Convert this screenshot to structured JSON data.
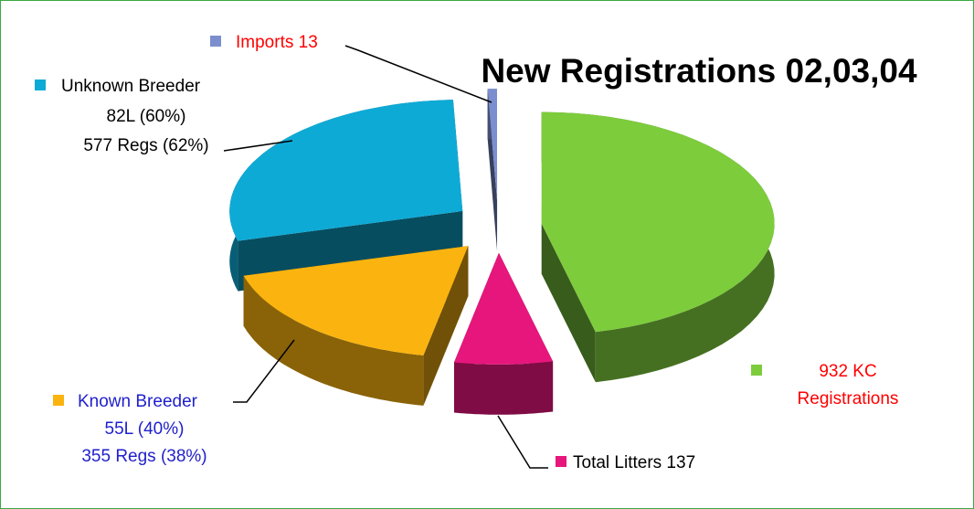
{
  "chart_data": {
    "type": "pie3d",
    "title": "New Registrations 02,03,04",
    "categories": [
      "KC Registrations",
      "Total Litters",
      "Known Breeder",
      "Unknown Breeder",
      "Imports"
    ],
    "values": [
      932,
      137,
      355,
      577,
      13
    ],
    "colors": [
      "#7dcc3c",
      "#e6167c",
      "#fbb40f",
      "#0eaad6",
      "#7b8fcf"
    ],
    "value_labels": [
      [
        "932 KC",
        "Registrations"
      ],
      [
        "Total Litters 137"
      ],
      [
        "Known Breeder",
        "55L (40%)",
        "355 Regs (38%)"
      ],
      [
        "Unknown Breeder",
        "82L (60%)",
        "577 Regs (62%)"
      ],
      [
        "Imports 13"
      ]
    ],
    "label_colors": [
      "#ff0000",
      "#000000",
      "#1f1fcc",
      "#000000",
      "#ff0000"
    ]
  }
}
